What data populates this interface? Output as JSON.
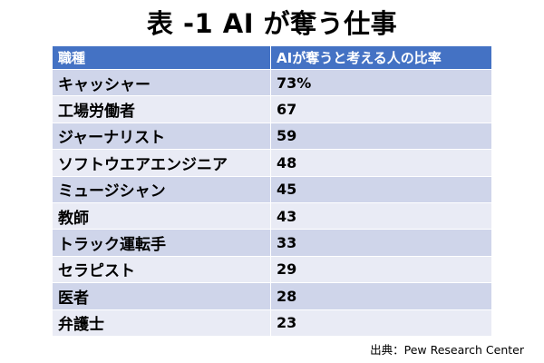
{
  "title": "表 -1 AI が奪う仕事",
  "table": {
    "headers": {
      "job": "職種",
      "rate": "AIが奪うと考える人の比率"
    },
    "rows": [
      {
        "job": "キャッシャー",
        "rate": "73%"
      },
      {
        "job": "工場労働者",
        "rate": "67"
      },
      {
        "job": "ジャーナリスト",
        "rate": "59"
      },
      {
        "job": "ソフトウエアエンジニア",
        "rate": "48"
      },
      {
        "job": "ミュージシャン",
        "rate": "45"
      },
      {
        "job": "教師",
        "rate": "43"
      },
      {
        "job": "トラック運転手",
        "rate": "33"
      },
      {
        "job": "セラピスト",
        "rate": "29"
      },
      {
        "job": "医者",
        "rate": "28"
      },
      {
        "job": "弁護士",
        "rate": "23"
      }
    ]
  },
  "source": "出典：Pew Research Center",
  "colors": {
    "header": "#4472c4",
    "row_dark": "#cfd5ea",
    "row_light": "#e9ebf5"
  }
}
